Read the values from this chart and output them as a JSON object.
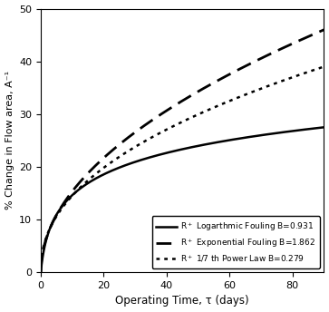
{
  "title": "",
  "xlabel": "Operating Time, τ (days)",
  "ylabel": "% Change in Flow area, A⁻¹",
  "xlim": [
    0,
    90
  ],
  "ylim": [
    0,
    50
  ],
  "xticks": [
    0,
    20,
    40,
    60,
    80
  ],
  "yticks": [
    0,
    10,
    20,
    30,
    40,
    50
  ],
  "B_log": 0.931,
  "B_exp": 1.862,
  "B_pow": 0.279,
  "y_log_end": 27.5,
  "y_exp_end": 46.0,
  "y_pow_end": 39.0,
  "color": "black",
  "background_color": "#ffffff",
  "legend_labels": [
    "R$^+$ Logarthmic Fouling B=0.931",
    "R$^+$ Exponential Fouling B=1.862",
    "R$^+$ 1/7 th Power Law B=0.279"
  ],
  "legend_loc": "lower right",
  "legend_fontsize": 6.5,
  "xlabel_fontsize": 8.5,
  "ylabel_fontsize": 8,
  "tick_labelsize": 8,
  "lw_solid": 1.8,
  "lw_dashed": 2.0,
  "lw_dotted": 1.8
}
